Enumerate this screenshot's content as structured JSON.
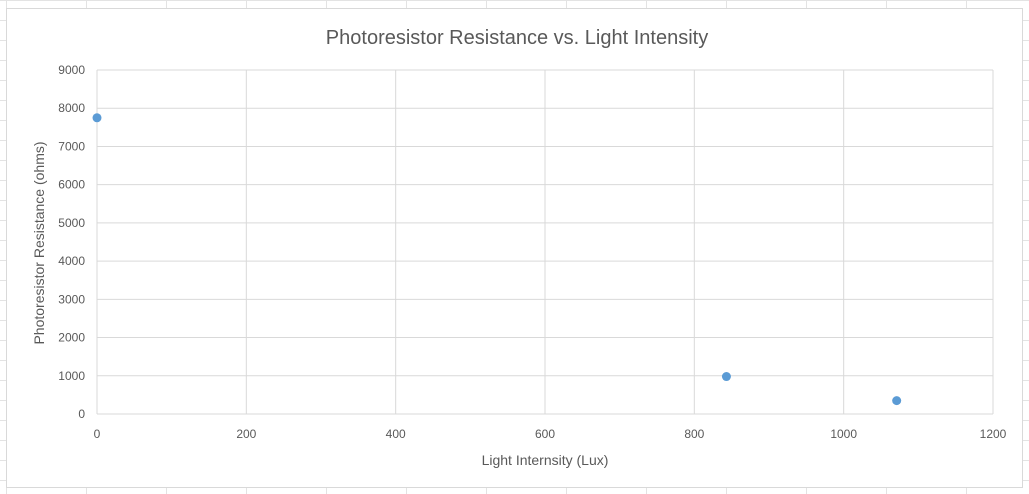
{
  "chart_data": {
    "type": "scatter",
    "title": "Photoresistor Resistance vs. Light Intensity",
    "xlabel": "Light Internsity (Lux)",
    "ylabel": "Photoresistor Resistance (ohms)",
    "xlim": [
      0,
      1200
    ],
    "ylim": [
      0,
      9000
    ],
    "x_ticks": [
      0,
      200,
      400,
      600,
      800,
      1000,
      1200
    ],
    "y_ticks": [
      0,
      1000,
      2000,
      3000,
      4000,
      5000,
      6000,
      7000,
      8000,
      9000
    ],
    "x_tick_labels": [
      "0",
      "200",
      "400",
      "600",
      "800",
      "1000",
      "1200"
    ],
    "y_tick_labels": [
      "0",
      "1000",
      "2000",
      "3000",
      "4000",
      "5000",
      "6000",
      "7000",
      "8000",
      "9000"
    ],
    "grid": true,
    "legend": "none",
    "series": [
      {
        "points": [
          {
            "x": 0,
            "y": 7750
          },
          {
            "x": 843,
            "y": 980
          },
          {
            "x": 1071,
            "y": 350
          }
        ],
        "color": "#5b9bd5"
      }
    ]
  }
}
